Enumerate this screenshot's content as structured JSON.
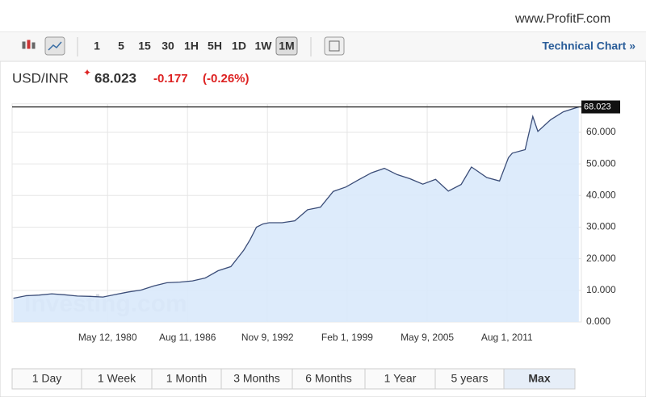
{
  "watermark": "www.ProfitF.com",
  "toolbar": {
    "intervals": [
      "1",
      "5",
      "15",
      "30",
      "1H",
      "5H",
      "1D",
      "1W",
      "1M"
    ],
    "active": "1M",
    "link": "Technical Chart »"
  },
  "quote": {
    "symbol": "USD/INR",
    "price": "68.023",
    "change": "-0.177",
    "change_pct": "(-0.26%)"
  },
  "chart_data": {
    "type": "area",
    "logo": "Investing.com",
    "x": [
      1973,
      1974,
      1975,
      1976,
      1977,
      1978,
      1979,
      1980,
      1981,
      1982,
      1983,
      1984,
      1985,
      1986,
      1987,
      1988,
      1989,
      1990,
      1991,
      1991.5,
      1992,
      1992.5,
      1993,
      1994,
      1995,
      1996,
      1997,
      1998,
      1999,
      2000,
      2001,
      2002,
      2003,
      2004,
      2005,
      2006,
      2007,
      2008,
      2008.8,
      2009,
      2010,
      2011,
      2011.7,
      2012,
      2013,
      2013.6,
      2014,
      2015,
      2016,
      2017.2
    ],
    "series": [
      {
        "name": "USD/INR",
        "color": "#3b4d78",
        "fill": "#d9e9fb",
        "values": [
          7.5,
          8.3,
          8.5,
          8.9,
          8.6,
          8.2,
          8.1,
          7.9,
          8.7,
          9.5,
          10.1,
          11.4,
          12.4,
          12.6,
          13.0,
          13.9,
          16.2,
          17.5,
          22.7,
          26,
          30,
          31,
          31.4,
          31.4,
          32,
          35.5,
          36.3,
          41.3,
          42.7,
          45,
          47.2,
          48.6,
          46.6,
          45.3,
          43.6,
          45.1,
          41.4,
          43.5,
          49,
          48.5,
          45.7,
          44.6,
          52,
          53.4,
          54.5,
          65,
          60.3,
          64,
          66.5,
          68.023
        ]
      }
    ],
    "price_line": {
      "value": 68.023,
      "label": "68.023"
    },
    "xlim": [
      1972.9,
      2017.4
    ],
    "ylim": [
      0,
      69
    ],
    "xticks": [
      {
        "value": 1980.36,
        "label": "May 12, 1980"
      },
      {
        "value": 1986.61,
        "label": "Aug 11, 1986"
      },
      {
        "value": 1992.86,
        "label": "Nov 9, 1992"
      },
      {
        "value": 1999.09,
        "label": "Feb 1, 1999"
      },
      {
        "value": 2005.35,
        "label": "May 9, 2005"
      },
      {
        "value": 2011.58,
        "label": "Aug 1, 2011"
      }
    ],
    "yticks": [
      {
        "value": 0,
        "label": "0.000"
      },
      {
        "value": 10,
        "label": "10.000"
      },
      {
        "value": 20,
        "label": "20.000"
      },
      {
        "value": 30,
        "label": "30.000"
      },
      {
        "value": 40,
        "label": "40.000"
      },
      {
        "value": 50,
        "label": "50.000"
      },
      {
        "value": 60,
        "label": "60.000"
      }
    ],
    "grid": true
  },
  "ranges": {
    "items": [
      "1 Day",
      "1 Week",
      "1 Month",
      "3 Months",
      "6 Months",
      "1 Year",
      "5 years",
      "Max"
    ],
    "active": "Max"
  }
}
